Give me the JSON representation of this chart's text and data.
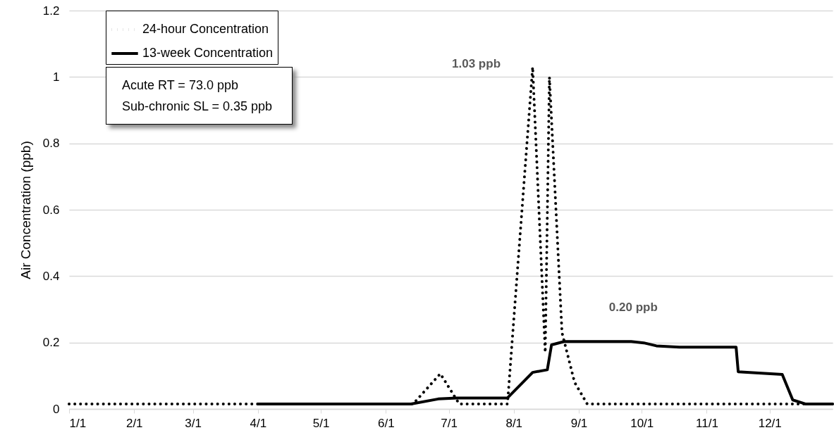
{
  "chart_data": {
    "type": "line",
    "ylabel": "Air Concentration (ppb)",
    "xlim": [
      "--01-01",
      "--12-31"
    ],
    "xticks": [
      {
        "value": "--01-01",
        "label": "1/1"
      },
      {
        "value": "--02-01",
        "label": "2/1"
      },
      {
        "value": "--03-01",
        "label": "3/1"
      },
      {
        "value": "--04-01",
        "label": "4/1"
      },
      {
        "value": "--05-01",
        "label": "5/1"
      },
      {
        "value": "--06-01",
        "label": "6/1"
      },
      {
        "value": "--07-01",
        "label": "7/1"
      },
      {
        "value": "--08-01",
        "label": "8/1"
      },
      {
        "value": "--09-01",
        "label": "9/1"
      },
      {
        "value": "--10-01",
        "label": "10/1"
      },
      {
        "value": "--11-01",
        "label": "11/1"
      },
      {
        "value": "--12-01",
        "label": "12/1"
      }
    ],
    "ylim": [
      0,
      1.2
    ],
    "yticks": [
      0,
      0.2,
      0.4,
      0.6,
      0.8,
      1,
      1.2
    ],
    "grid": "y",
    "legend": "top left",
    "marker": "none",
    "series": [
      {
        "name": "24-hour Concentration",
        "color": "#000000",
        "line_style": "dotted",
        "x": [
          "--01-01",
          "--06-14",
          "--06-27",
          "--07-06",
          "--07-29",
          "--08-10",
          "--08-16",
          "--08-18",
          "--08-24",
          "--08-30",
          "--09-05",
          "--12-31"
        ],
        "values": [
          0.015,
          0.015,
          0.106,
          0.015,
          0.015,
          1.03,
          0.17,
          1.0,
          0.23,
          0.08,
          0.015,
          0.015
        ]
      },
      {
        "name": "13-week Concentration",
        "color": "#000000",
        "line_style": "solid",
        "x": [
          "--04-01",
          "--06-13",
          "--06-26",
          "--07-05",
          "--07-29",
          "--08-10",
          "--08-17",
          "--08-19",
          "--08-25",
          "--09-26",
          "--10-02",
          "--10-08",
          "--10-19",
          "--11-15",
          "--11-16",
          "--12-07",
          "--12-12",
          "--12-18",
          "--12-31"
        ],
        "values": [
          0.015,
          0.015,
          0.03,
          0.033,
          0.033,
          0.11,
          0.118,
          0.193,
          0.203,
          0.203,
          0.199,
          0.19,
          0.186,
          0.186,
          0.112,
          0.104,
          0.027,
          0.015,
          0.015
        ]
      }
    ],
    "annotations": [
      {
        "text": "1.03 ppb",
        "x": "--08-10",
        "y": 1.03
      },
      {
        "text": "0.20 ppb",
        "x": "--09-27",
        "y": 0.2
      },
      "Acute RT = 73.0 ppb",
      "Sub-chronic SL = 0.35 ppb"
    ]
  }
}
